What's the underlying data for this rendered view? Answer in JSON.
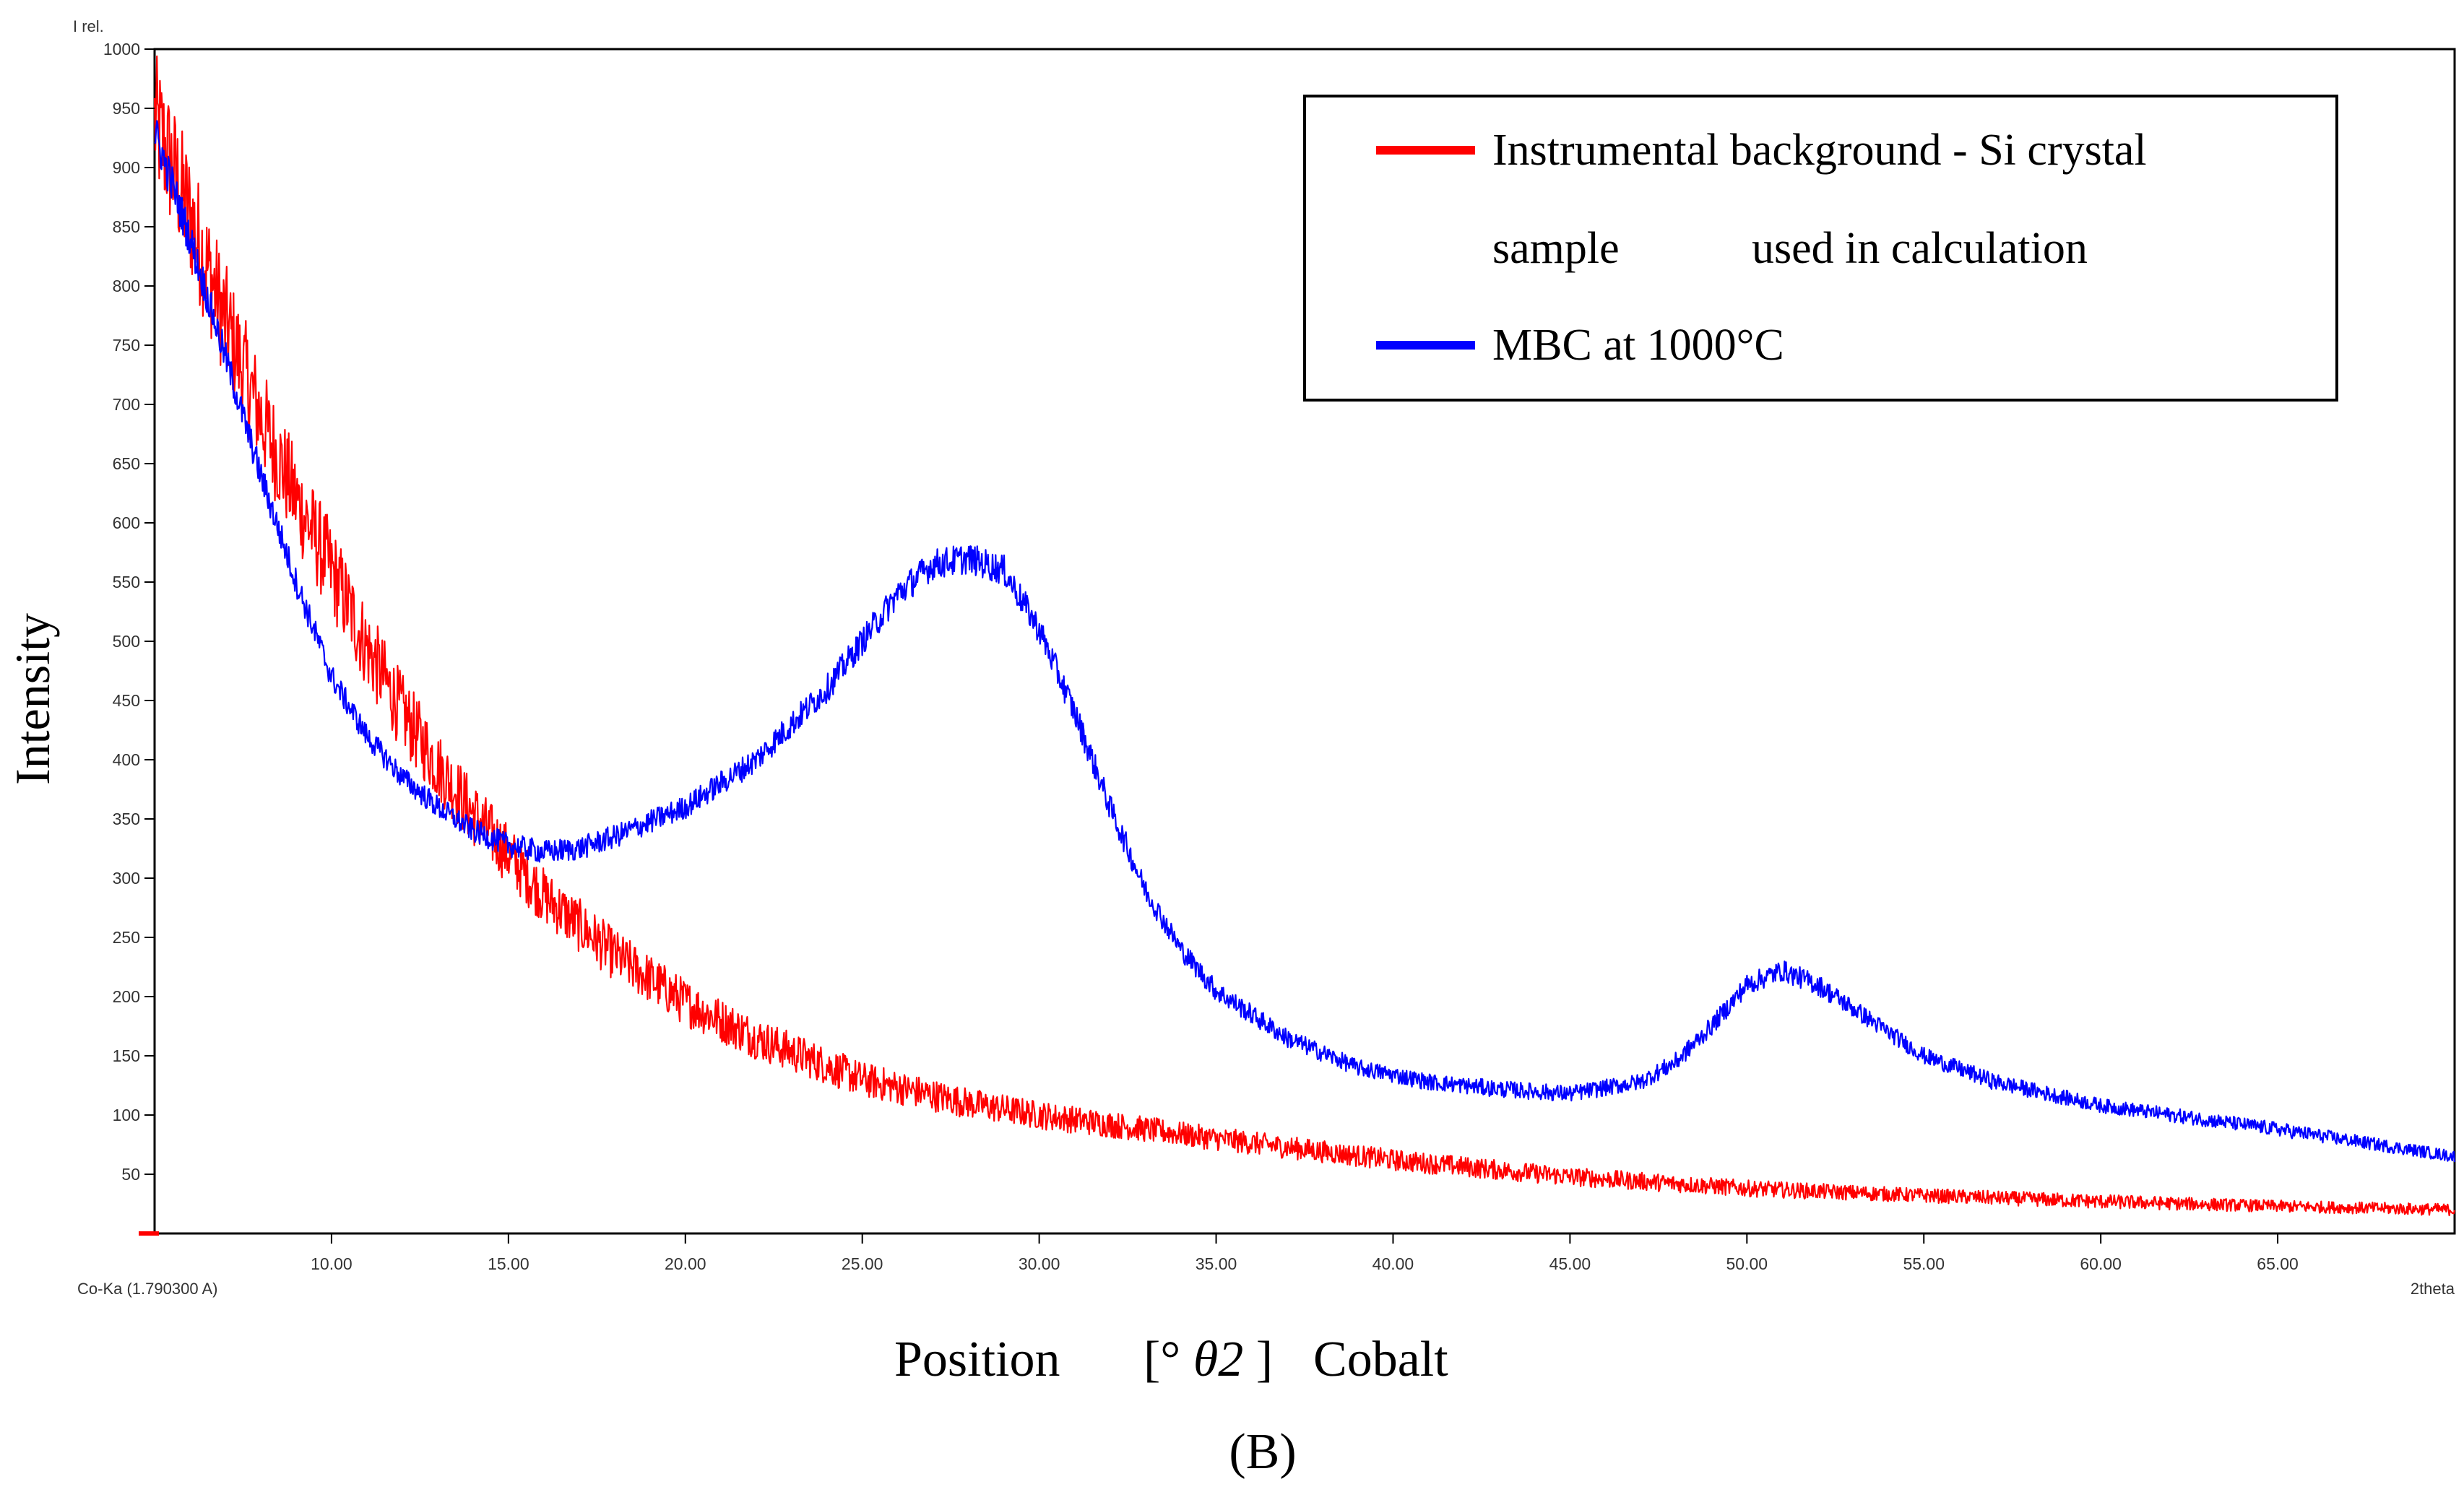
{
  "chart_data": {
    "type": "line",
    "title": "",
    "caption": "(B)",
    "xlabel": {
      "pre": "Position",
      "bracket_open": "[°",
      "theta": "θ2",
      "bracket_close": "]",
      "post": "Cobalt"
    },
    "ylabel": "Intensity",
    "y_axis_unit": "I rel.",
    "x_axis_unit": "2theta",
    "radiation": "Co-Ka (1.790300 A)",
    "xlim": [
      5,
      70
    ],
    "ylim": [
      0,
      1000
    ],
    "x_ticks": [
      10,
      15,
      20,
      25,
      30,
      35,
      40,
      45,
      50,
      55,
      60,
      65
    ],
    "x_tick_labels": [
      "10.00",
      "15.00",
      "20.00",
      "25.00",
      "30.00",
      "35.00",
      "40.00",
      "45.00",
      "50.00",
      "55.00",
      "60.00",
      "65.00"
    ],
    "y_ticks": [
      50,
      100,
      150,
      200,
      250,
      300,
      350,
      400,
      450,
      500,
      550,
      600,
      650,
      700,
      750,
      800,
      850,
      900,
      950,
      1000
    ],
    "y_tick_labels": [
      "50",
      "100",
      "150",
      "200",
      "250",
      "300",
      "350",
      "400",
      "450",
      "500",
      "550",
      "600",
      "650",
      "700",
      "750",
      "800",
      "850",
      "900",
      "950",
      "1000"
    ],
    "legend_position": "top-right",
    "series": [
      {
        "name": "Instrumental background - Si crystal sample used in calculation",
        "legend_line1": "Instrumental  background  -  Si  crystal",
        "legend_line2_a": "sample",
        "legend_line2_b": "used in calculation",
        "color": "#ff0000",
        "x": [
          5,
          6,
          7,
          8,
          9,
          10,
          11,
          12,
          13,
          14,
          15,
          16,
          18,
          20,
          22,
          25,
          28,
          30,
          35,
          40,
          45,
          50,
          55,
          60,
          65,
          70
        ],
        "y": [
          940,
          860,
          770,
          690,
          620,
          560,
          495,
          440,
          395,
          355,
          320,
          285,
          235,
          195,
          165,
          130,
          110,
          100,
          80,
          62,
          48,
          38,
          32,
          27,
          23,
          20
        ],
        "spread": [
          60,
          55,
          50,
          45,
          42,
          40,
          36,
          33,
          30,
          28,
          26,
          24,
          22,
          20,
          18,
          15,
          13,
          12,
          10,
          9,
          8,
          7,
          6,
          6,
          5,
          5
        ]
      },
      {
        "name": "MBC at 1000°C",
        "legend_label": "MBC at 1000°C",
        "color": "#0000ff",
        "x": [
          5,
          6,
          7,
          8,
          9,
          10,
          11,
          12,
          13,
          14,
          15,
          16,
          17,
          18,
          20,
          22,
          24,
          25,
          26,
          27,
          28,
          29,
          30,
          31,
          32,
          33,
          34,
          35,
          37,
          39,
          41,
          43,
          45,
          47,
          48,
          49,
          50,
          51,
          52,
          53,
          55,
          57,
          60,
          65,
          70
        ],
        "y": [
          930,
          840,
          740,
          640,
          550,
          470,
          420,
          385,
          360,
          340,
          328,
          322,
          325,
          335,
          360,
          400,
          460,
          500,
          540,
          565,
          570,
          560,
          510,
          440,
          360,
          290,
          240,
          205,
          165,
          140,
          128,
          122,
          118,
          128,
          145,
          175,
          210,
          222,
          210,
          190,
          150,
          128,
          108,
          88,
          65
        ],
        "spread": [
          18,
          16,
          14,
          13,
          12,
          11,
          10,
          10,
          10,
          10,
          10,
          10,
          10,
          10,
          10,
          11,
          12,
          12,
          13,
          13,
          13,
          13,
          12,
          12,
          11,
          10,
          9,
          9,
          8,
          7,
          7,
          7,
          7,
          7,
          8,
          8,
          9,
          9,
          9,
          8,
          7,
          7,
          6,
          6,
          5
        ]
      }
    ]
  }
}
